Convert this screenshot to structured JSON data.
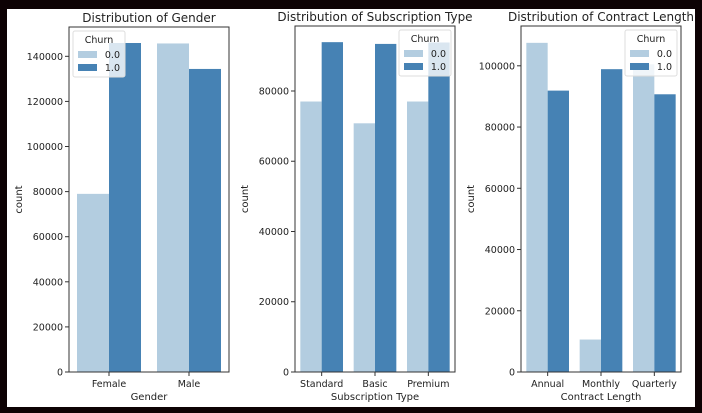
{
  "colors": {
    "churn_0": "#b3cde0",
    "churn_1": "#4682b4",
    "background": "#ffffff",
    "frame": "#0d0204"
  },
  "chart_data": [
    {
      "type": "bar",
      "title": "Distribution of Gender",
      "xlabel": "Gender",
      "ylabel": "count",
      "categories": [
        "Female",
        "Male"
      ],
      "ylim": [
        0,
        153000
      ],
      "yticks": [
        0,
        20000,
        40000,
        60000,
        80000,
        100000,
        120000,
        140000
      ],
      "legend": {
        "title": "Churn",
        "entries": [
          "0.0",
          "1.0"
        ],
        "placement": "top-left"
      },
      "series": [
        {
          "name": "0.0",
          "values": [
            79000,
            145700
          ]
        },
        {
          "name": "1.0",
          "values": [
            145900,
            134400
          ]
        }
      ]
    },
    {
      "type": "bar",
      "title": "Distribution of Subscription Type",
      "xlabel": "Subscription Type",
      "ylabel": "count",
      "categories": [
        "Standard",
        "Basic",
        "Premium"
      ],
      "ylim": [
        0,
        98500
      ],
      "yticks": [
        0,
        20000,
        40000,
        60000,
        80000
      ],
      "legend": {
        "title": "Churn",
        "entries": [
          "0.0",
          "1.0"
        ],
        "placement": "top-right"
      },
      "series": [
        {
          "name": "0.0",
          "values": [
            77000,
            70800,
            77000
          ]
        },
        {
          "name": "1.0",
          "values": [
            93900,
            93400,
            93800
          ]
        }
      ]
    },
    {
      "type": "bar",
      "title": "Distribution of Contract Length",
      "xlabel": "Contract Length",
      "ylabel": "count",
      "categories": [
        "Annual",
        "Monthly",
        "Quarterly"
      ],
      "ylim": [
        0,
        113000
      ],
      "yticks": [
        0,
        20000,
        40000,
        60000,
        80000,
        100000
      ],
      "legend": {
        "title": "Churn",
        "entries": [
          "0.0",
          "1.0"
        ],
        "placement": "top-right"
      },
      "series": [
        {
          "name": "0.0",
          "values": [
            107500,
            10600,
            100500
          ]
        },
        {
          "name": "1.0",
          "values": [
            91900,
            98900,
            90700
          ]
        }
      ]
    }
  ]
}
